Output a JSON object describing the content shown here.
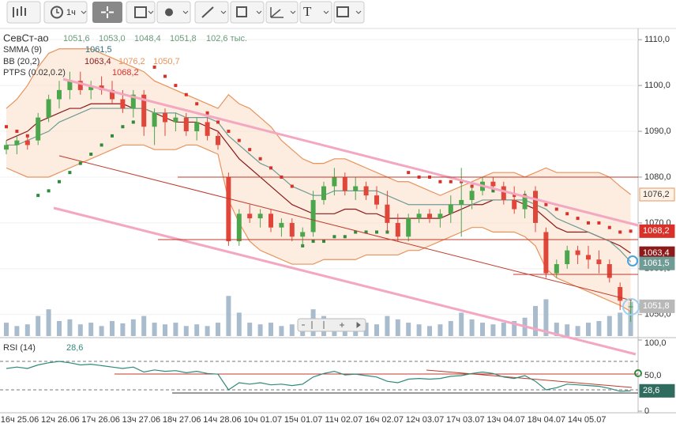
{
  "toolbar": {
    "interval": "1ч",
    "text_tool": "T"
  },
  "legend": {
    "symbol": "СевСт-ао",
    "open": "1051,6",
    "high": "1053,0",
    "low": "1048,4",
    "close": "1051,8",
    "volume": "102,6 тыс.",
    "smma": {
      "name": "SMMA (9)",
      "value": "1061,5"
    },
    "bb": {
      "name": "BB (20,2)",
      "middle": "1063,4",
      "upper": "1076,2",
      "lower": "1050,7"
    },
    "ptps": {
      "name": "PTPS (0.02,0.2)",
      "value": "1068,2"
    }
  },
  "time_labels": [
    "16ч 25.06",
    "12ч 26.06",
    "17ч 26.06",
    "13ч 27.06",
    "18ч 27.06",
    "14ч 28.06",
    "10ч 01.07",
    "15ч 01.07",
    "11ч 02.07",
    "16ч 02.07",
    "12ч 03.07",
    "17ч 03.07",
    "13ч 04.07",
    "18ч 04.07",
    "14ч 05.07"
  ],
  "chart_data": [
    {
      "type": "candlestick",
      "ylim": [
        1045.3,
        1112.1
      ],
      "up_color": "#4ca64c",
      "down_color": "#e0463a",
      "yticks": [
        {
          "value": 1110,
          "label": "1110,0"
        },
        {
          "value": 1100,
          "label": "1100,0"
        },
        {
          "value": 1090,
          "label": "1090,0"
        },
        {
          "value": 1080,
          "label": "1080,0"
        },
        {
          "value": 1070,
          "label": "1070,0"
        },
        {
          "value": 1060,
          "label": "1060,0"
        },
        {
          "value": 1050,
          "label": "1050,0"
        }
      ],
      "open": [
        1086,
        1087,
        1088,
        1088,
        1093,
        1097,
        1099,
        1101,
        1099,
        1100,
        1099,
        1097,
        1095,
        1098,
        1091,
        1094,
        1092,
        1093,
        1090,
        1092,
        1089,
        1080,
        1066,
        1072,
        1071,
        1072,
        1069,
        1070,
        1067,
        1068,
        1075,
        1078,
        1080,
        1077,
        1078,
        1076,
        1074,
        1070,
        1067,
        1071,
        1072,
        1071,
        1072,
        1074,
        1075,
        1077,
        1079,
        1078,
        1075,
        1073,
        1077,
        1068,
        1059,
        1061,
        1064,
        1063,
        1062,
        1061,
        1056,
        1051.6
      ],
      "high": [
        1088,
        1089,
        1089,
        1094,
        1098,
        1101,
        1103,
        1103,
        1101,
        1102,
        1101,
        1099,
        1099,
        1099,
        1095,
        1095,
        1094,
        1094,
        1093,
        1093,
        1090,
        1081,
        1073,
        1074,
        1073,
        1073,
        1071,
        1071,
        1069,
        1077,
        1079,
        1082,
        1081,
        1080,
        1079,
        1078,
        1077,
        1072,
        1072,
        1073,
        1073,
        1073,
        1076,
        1082,
        1078,
        1080,
        1080,
        1079,
        1078,
        1077,
        1078,
        1069,
        1062,
        1065,
        1065,
        1065,
        1064,
        1062,
        1057,
        1053
      ],
      "low": [
        1085,
        1085,
        1086,
        1087,
        1092,
        1095,
        1097,
        1098,
        1097,
        1098,
        1096,
        1094,
        1093,
        1089,
        1087,
        1089,
        1090,
        1089,
        1088,
        1088,
        1086,
        1065,
        1065,
        1070,
        1069,
        1068,
        1067,
        1066,
        1065,
        1067,
        1074,
        1076,
        1076,
        1075,
        1075,
        1073,
        1068,
        1066,
        1066,
        1070,
        1070,
        1069,
        1070,
        1067,
        1073,
        1076,
        1077,
        1074,
        1072,
        1071,
        1068,
        1058,
        1058,
        1060,
        1061,
        1060,
        1059,
        1057,
        1051,
        1048.4
      ],
      "close": [
        1087,
        1088,
        1087,
        1093,
        1097,
        1099,
        1101,
        1099,
        1100,
        1099,
        1097,
        1095,
        1098,
        1091,
        1094,
        1092,
        1093,
        1090,
        1092,
        1089,
        1087,
        1066,
        1072,
        1071,
        1072,
        1069,
        1070,
        1067,
        1068,
        1075,
        1078,
        1080,
        1077,
        1078,
        1076,
        1074,
        1070,
        1067,
        1071,
        1072,
        1071,
        1072,
        1074,
        1075,
        1077,
        1079,
        1078,
        1075,
        1073,
        1076,
        1070,
        1059,
        1061,
        1064,
        1063,
        1062,
        1061,
        1058,
        1053,
        1051.8
      ],
      "overlays": [
        {
          "style": "band_upper",
          "color": "#e8935a",
          "values": [
            1095,
            1097,
            1100,
            1104,
            1107,
            1108,
            1108,
            1108,
            1108,
            1107,
            1106,
            1105,
            1104,
            1103,
            1101,
            1100,
            1099,
            1098,
            1097,
            1096,
            1095,
            1098,
            1096,
            1095,
            1093,
            1091,
            1088,
            1086,
            1084,
            1083,
            1083,
            1084,
            1084,
            1083,
            1082,
            1081,
            1080,
            1079,
            1079,
            1078,
            1077,
            1076,
            1077,
            1078,
            1079,
            1080,
            1081,
            1081,
            1081,
            1080,
            1081,
            1082,
            1081,
            1081,
            1081,
            1081,
            1081,
            1080,
            1078,
            1076.2
          ]
        },
        {
          "style": "band_lower",
          "color": "#e8935a",
          "values": [
            1082,
            1081,
            1080,
            1080,
            1080,
            1081,
            1082,
            1083,
            1084,
            1085,
            1086,
            1087,
            1087,
            1087,
            1086,
            1086,
            1086,
            1087,
            1087,
            1086,
            1085,
            1075,
            1070,
            1066,
            1064,
            1063,
            1062,
            1061,
            1061,
            1061,
            1062,
            1062,
            1062,
            1062,
            1063,
            1063,
            1063,
            1063,
            1064,
            1064,
            1065,
            1066,
            1067,
            1068,
            1069,
            1069,
            1068,
            1068,
            1068,
            1067,
            1065,
            1060,
            1058,
            1057,
            1056,
            1055,
            1054,
            1053,
            1052,
            1050.7
          ]
        },
        {
          "style": "line",
          "color": "#8b1a1a",
          "values": [
            1088,
            1089,
            1090,
            1092,
            1093,
            1094,
            1095,
            1095,
            1096,
            1096,
            1096,
            1096,
            1095,
            1095,
            1094,
            1093,
            1092,
            1092,
            1092,
            1091,
            1090,
            1087,
            1084,
            1082,
            1080,
            1078,
            1076,
            1074,
            1073,
            1072,
            1072,
            1072,
            1073,
            1073,
            1072,
            1072,
            1071,
            1071,
            1071,
            1071,
            1071,
            1071,
            1072,
            1073,
            1074,
            1074,
            1075,
            1075,
            1075,
            1074,
            1073,
            1071,
            1069,
            1068,
            1068,
            1068,
            1067,
            1066,
            1065,
            1063.4
          ]
        },
        {
          "style": "line",
          "color": "#6f9c94",
          "values": [
            1087,
            1087,
            1088,
            1089,
            1090,
            1092,
            1093,
            1094,
            1095,
            1095,
            1095,
            1095,
            1095,
            1095,
            1094,
            1094,
            1094,
            1093,
            1093,
            1093,
            1092,
            1089,
            1087,
            1085,
            1083,
            1082,
            1080,
            1078,
            1077,
            1076,
            1076,
            1077,
            1077,
            1077,
            1077,
            1077,
            1076,
            1075,
            1074,
            1074,
            1074,
            1074,
            1074,
            1074,
            1074,
            1075,
            1075,
            1075,
            1075,
            1075,
            1074,
            1073,
            1071,
            1070,
            1069,
            1068,
            1067,
            1066,
            1064,
            1061.5
          ]
        },
        {
          "style": "dots",
          "color": "#d9302a",
          "alt_color": "#2e8b3a",
          "values": [
            1091,
            1090,
            1089,
            1076,
            1077,
            1079,
            1081,
            1083,
            1085,
            1087,
            1089,
            1091,
            1092,
            1093,
            1104,
            1102,
            1100,
            1098,
            1096,
            1094,
            1092,
            1090,
            1088,
            1086,
            1084,
            1082,
            1080,
            1078,
            1065,
            1066,
            1066,
            1067,
            1067,
            1068,
            1068,
            1068,
            1068,
            1068,
            1081,
            1080,
            1080,
            1079,
            1079,
            1079,
            1078,
            1078,
            1077,
            1077,
            1076,
            1076,
            1075,
            1074,
            1073,
            1072,
            1071,
            1070,
            1070,
            1069,
            1068,
            1068.2
          ]
        }
      ]
    },
    {
      "type": "bar",
      "color": "#a9bccd",
      "ylim": [
        0,
        130
      ],
      "values": [
        40,
        30,
        35,
        60,
        80,
        45,
        50,
        35,
        40,
        30,
        45,
        38,
        50,
        60,
        40,
        35,
        40,
        30,
        35,
        30,
        40,
        120,
        70,
        40,
        35,
        40,
        30,
        35,
        50,
        80,
        60,
        45,
        40,
        35,
        40,
        35,
        60,
        50,
        40,
        35,
        30,
        35,
        45,
        70,
        50,
        40,
        35,
        40,
        45,
        55,
        90,
        110,
        40,
        35,
        30,
        40,
        45,
        60,
        70,
        102.6
      ]
    },
    {
      "type": "line",
      "title": "RSI (14)",
      "value_label": "28,6",
      "color": "#2f8a7a",
      "ylim": [
        0,
        100
      ],
      "levels": [
        70,
        30
      ],
      "yticks": [
        {
          "value": 100,
          "label": "100,0"
        },
        {
          "value": 50,
          "label": "50,0"
        },
        0
      ],
      "values": [
        60,
        62,
        60,
        65,
        68,
        70,
        68,
        65,
        66,
        64,
        62,
        60,
        62,
        55,
        58,
        56,
        57,
        54,
        56,
        53,
        52,
        30,
        40,
        38,
        40,
        37,
        38,
        36,
        38,
        48,
        53,
        56,
        51,
        52,
        50,
        48,
        42,
        40,
        45,
        46,
        45,
        46,
        49,
        50,
        53,
        55,
        53,
        48,
        46,
        50,
        42,
        30,
        33,
        38,
        37,
        36,
        35,
        32,
        28,
        28.6
      ]
    }
  ]
}
